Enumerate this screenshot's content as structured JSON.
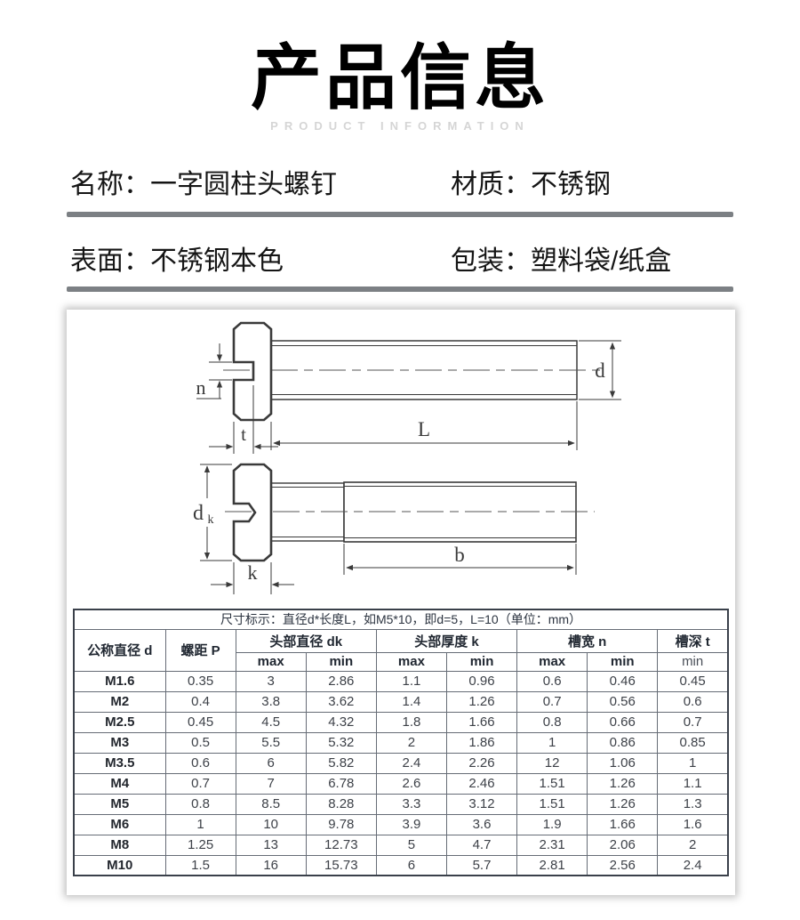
{
  "header": {
    "title": "产品信息",
    "subtitle": "PRODUCT INFORMATION"
  },
  "info": {
    "rows": [
      [
        {
          "label": "名称：",
          "value": "一字圆柱头螺钉"
        },
        {
          "label": "材质：",
          "value": "不锈钢"
        }
      ],
      [
        {
          "label": "表面：",
          "value": "不锈钢本色"
        },
        {
          "label": "包装：",
          "value": "塑料袋/纸盒"
        }
      ]
    ]
  },
  "diagram": {
    "labels": {
      "n": "n",
      "t": "t",
      "L": "L",
      "d": "d",
      "dk_base": "d",
      "dk_sub": "k",
      "k": "k",
      "b": "b"
    }
  },
  "table": {
    "caption": "尺寸标示：直径d*长度L，如M5*10，即d=5，L=10（单位：mm）",
    "groups": [
      "公称直径 d",
      "螺距 P",
      "头部直径 dk",
      "头部厚度 k",
      "槽宽 n",
      "槽深 t"
    ],
    "sub": [
      "max",
      "min",
      "max",
      "min",
      "max",
      "min",
      "min"
    ],
    "rows": [
      [
        "M1.6",
        "0.35",
        "3",
        "2.86",
        "1.1",
        "0.96",
        "0.6",
        "0.46",
        "0.45"
      ],
      [
        "M2",
        "0.4",
        "3.8",
        "3.62",
        "1.4",
        "1.26",
        "0.7",
        "0.56",
        "0.6"
      ],
      [
        "M2.5",
        "0.45",
        "4.5",
        "4.32",
        "1.8",
        "1.66",
        "0.8",
        "0.66",
        "0.7"
      ],
      [
        "M3",
        "0.5",
        "5.5",
        "5.32",
        "2",
        "1.86",
        "1",
        "0.86",
        "0.85"
      ],
      [
        "M3.5",
        "0.6",
        "6",
        "5.82",
        "2.4",
        "2.26",
        "12",
        "1.06",
        "1"
      ],
      [
        "M4",
        "0.7",
        "7",
        "6.78",
        "2.6",
        "2.46",
        "1.51",
        "1.26",
        "1.1"
      ],
      [
        "M5",
        "0.8",
        "8.5",
        "8.28",
        "3.3",
        "3.12",
        "1.51",
        "1.26",
        "1.3"
      ],
      [
        "M6",
        "1",
        "10",
        "9.78",
        "3.9",
        "3.6",
        "1.9",
        "1.66",
        "1.6"
      ],
      [
        "M8",
        "1.25",
        "13",
        "12.73",
        "5",
        "4.7",
        "2.31",
        "2.06",
        "2"
      ],
      [
        "M10",
        "1.5",
        "16",
        "15.73",
        "6",
        "5.7",
        "2.81",
        "2.56",
        "2.4"
      ]
    ]
  },
  "colors": {
    "divider": "#7c8084",
    "subtitle": "#d5d5d5",
    "drawing_stroke": "#3a3a3a",
    "table_border": "#666c76"
  }
}
